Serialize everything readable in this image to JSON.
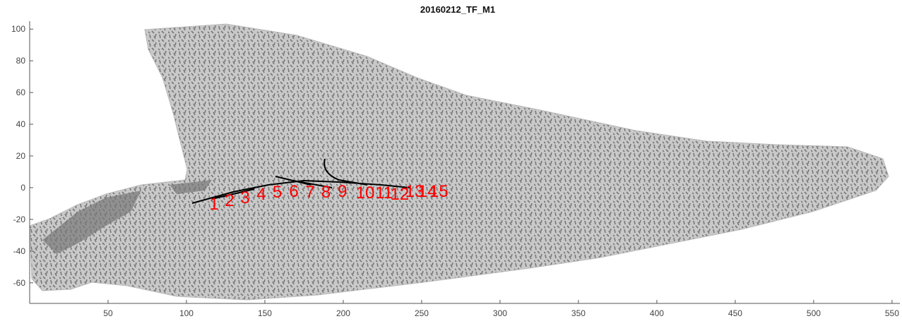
{
  "chart_data": {
    "type": "scatter",
    "title": "20160212_TF_M1",
    "xlim": [
      0,
      555
    ],
    "ylim": [
      -73,
      105
    ],
    "xticks": [
      50,
      100,
      150,
      200,
      250,
      300,
      350,
      400,
      450,
      500,
      550
    ],
    "yticks": [
      -60,
      -40,
      -20,
      0,
      20,
      40,
      60,
      80,
      100
    ],
    "color": "#ff0000",
    "points": [
      {
        "label": "1",
        "x": 117.6,
        "y": -9.8
      },
      {
        "label": "2",
        "x": 127.5,
        "y": -7.5
      },
      {
        "label": "3",
        "x": 137.4,
        "y": -5.8
      },
      {
        "label": "4",
        "x": 147.7,
        "y": -3.6
      },
      {
        "label": "5",
        "x": 158,
        "y": -2.2
      },
      {
        "label": "6",
        "x": 168.5,
        "y": -1.8
      },
      {
        "label": "7",
        "x": 178.8,
        "y": -2.2
      },
      {
        "label": "8",
        "x": 189,
        "y": -2.2
      },
      {
        "label": "9",
        "x": 199.5,
        "y": -1.8
      },
      {
        "label": "10",
        "x": 214,
        "y": -2.7
      },
      {
        "label": "11",
        "x": 226,
        "y": -2.7
      },
      {
        "label": "12",
        "x": 236,
        "y": -3.6
      },
      {
        "label": "13",
        "x": 245.5,
        "y": -1.8
      },
      {
        "label": "14",
        "x": 253.6,
        "y": -1.8
      },
      {
        "label": "15",
        "x": 261,
        "y": -1.8
      }
    ]
  }
}
